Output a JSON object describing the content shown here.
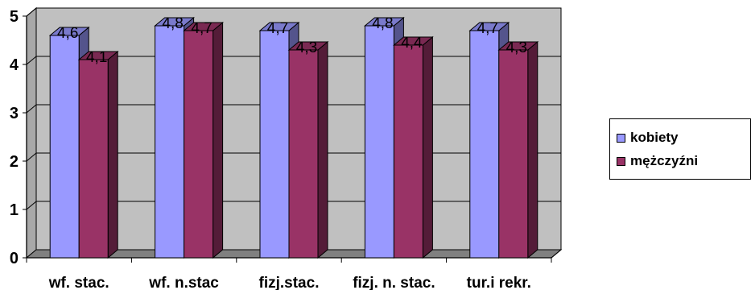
{
  "chart_data": {
    "type": "bar",
    "categories": [
      "wf. stac.",
      "wf. n.stac",
      "fizj.stac.",
      "fizj. n. stac.",
      "tur.i rekr."
    ],
    "series": [
      {
        "name": "kobiety",
        "values": [
          4.6,
          4.8,
          4.7,
          4.8,
          4.7
        ],
        "labels": [
          "4,6",
          "4,8",
          "4,7",
          "4,8",
          "4,7"
        ],
        "color": "#9999ff"
      },
      {
        "name": "mężczyźni",
        "values": [
          4.1,
          4.7,
          4.3,
          4.4,
          4.3
        ],
        "labels": [
          "4,1",
          "4,7",
          "4,3",
          "4,4",
          "4,3"
        ],
        "color": "#993366"
      }
    ],
    "ylim": [
      0,
      5
    ],
    "yticks": [
      0,
      1,
      2,
      3,
      4,
      5
    ],
    "grid": true,
    "legend": "right",
    "wall_color": "#c0c0c0"
  }
}
